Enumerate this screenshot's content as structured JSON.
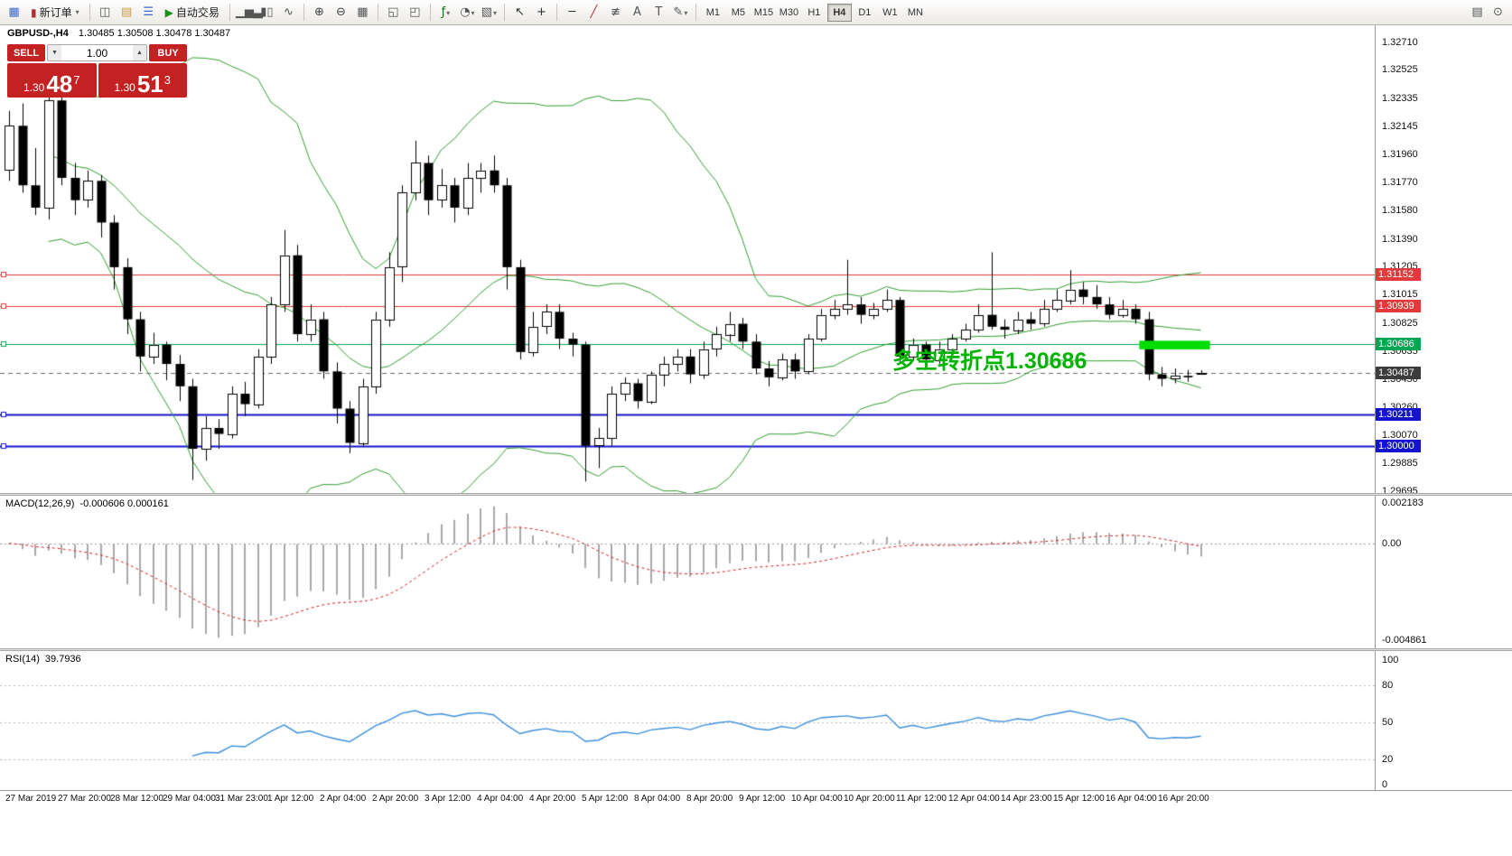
{
  "toolbar": {
    "groups": [
      {
        "items": [
          {
            "name": "new-chart-icon"
          },
          {
            "name": "new-order-button",
            "label": "新订单",
            "icon": "new-order-icon",
            "caret": true
          }
        ]
      },
      {
        "items": [
          {
            "name": "charts-icon"
          },
          {
            "name": "profiles-icon"
          },
          {
            "name": "market-watch-icon"
          },
          {
            "name": "autotrading-button",
            "label": "自动交易",
            "icon": "autotrading-icon"
          }
        ]
      },
      {
        "items": [
          {
            "name": "bar-chart-icon"
          },
          {
            "name": "candlestick-chart-icon"
          },
          {
            "name": "line-chart-icon"
          }
        ]
      },
      {
        "items": [
          {
            "name": "zoom-in-icon"
          },
          {
            "name": "zoom-out-icon"
          },
          {
            "name": "tile-windows-icon"
          }
        ]
      },
      {
        "items": [
          {
            "name": "arrange-vertical-icon"
          },
          {
            "name": "cascade-windows-icon"
          }
        ]
      },
      {
        "items": [
          {
            "name": "indicators-icon",
            "caret": true
          },
          {
            "name": "periods-icon",
            "caret": true
          },
          {
            "name": "templates-icon",
            "caret": true
          }
        ]
      },
      {
        "items": [
          {
            "name": "cursor-icon"
          },
          {
            "name": "crosshair-icon"
          }
        ]
      },
      {
        "items": [
          {
            "name": "horizontal-line-icon"
          },
          {
            "name": "trendline-icon"
          },
          {
            "name": "fibonacci-icon"
          },
          {
            "name": "text-icon"
          },
          {
            "name": "label-icon"
          },
          {
            "name": "shapes-icon",
            "caret": true
          }
        ]
      }
    ],
    "timeframes": {
      "options": [
        "M1",
        "M5",
        "M15",
        "M30",
        "H1",
        "H4",
        "D1",
        "W1",
        "MN"
      ],
      "active": "H4"
    },
    "right_items": [
      {
        "name": "print-icon"
      },
      {
        "name": "search-icon"
      }
    ]
  },
  "chart": {
    "symbol_period": "GBPUSD-,H4",
    "ohlc": "1.30485 1.30508 1.30478 1.30487"
  },
  "one_click": {
    "sell_label": "SELL",
    "buy_label": "BUY",
    "volume": "1.00",
    "bid": {
      "prefix": "1.30",
      "big": "48",
      "sup": "7"
    },
    "ask": {
      "prefix": "1.30",
      "big": "51",
      "sup": "3"
    }
  },
  "annotation": {
    "text": "多空转折点1.30686",
    "color": "#00b400"
  },
  "macd_panel": {
    "title": "MACD(12,26,9)",
    "values": "-0.000606 0.000161",
    "scale": [
      "0.002183",
      "0.00",
      "-0.004861"
    ]
  },
  "rsi_panel": {
    "title": "RSI(14)",
    "value": "39.7936",
    "scale": [
      "100",
      "80",
      "50",
      "20",
      "0"
    ]
  },
  "chart_data": {
    "type": "candlestick",
    "symbol": "GBPUSD-",
    "period": "H4",
    "price_ticks": [
      "1.32710",
      "1.32525",
      "1.32335",
      "1.32145",
      "1.31960",
      "1.31770",
      "1.31580",
      "1.31390",
      "1.31205",
      "1.31015",
      "1.30825",
      "1.30635",
      "1.30450",
      "1.30260",
      "1.30070",
      "1.29885",
      "1.29695"
    ],
    "candles": [
      [
        1.3185,
        1.3225,
        1.3178,
        1.3215
      ],
      [
        1.3215,
        1.323,
        1.317,
        1.3175
      ],
      [
        1.3175,
        1.32,
        1.3155,
        1.316
      ],
      [
        1.316,
        1.3238,
        1.3152,
        1.3232
      ],
      [
        1.3232,
        1.324,
        1.3175,
        1.318
      ],
      [
        1.318,
        1.319,
        1.3155,
        1.3165
      ],
      [
        1.3165,
        1.3185,
        1.316,
        1.3178
      ],
      [
        1.3178,
        1.3182,
        1.314,
        1.315
      ],
      [
        1.315,
        1.3155,
        1.3105,
        1.312
      ],
      [
        1.312,
        1.3126,
        1.3075,
        1.3085
      ],
      [
        1.3085,
        1.309,
        1.305,
        1.306
      ],
      [
        1.306,
        1.3076,
        1.3055,
        1.3068
      ],
      [
        1.3068,
        1.307,
        1.3044,
        1.3055
      ],
      [
        1.3055,
        1.3061,
        1.303,
        1.304
      ],
      [
        1.304,
        1.3045,
        1.2977,
        1.2998
      ],
      [
        1.2998,
        1.302,
        1.299,
        1.3012
      ],
      [
        1.3012,
        1.3018,
        1.2998,
        1.3008
      ],
      [
        1.3008,
        1.304,
        1.3005,
        1.3035
      ],
      [
        1.3035,
        1.3043,
        1.302,
        1.3028
      ],
      [
        1.3028,
        1.3065,
        1.3025,
        1.306
      ],
      [
        1.306,
        1.31,
        1.3055,
        1.3095
      ],
      [
        1.3095,
        1.3145,
        1.309,
        1.3128
      ],
      [
        1.3128,
        1.3135,
        1.307,
        1.3075
      ],
      [
        1.3075,
        1.3095,
        1.307,
        1.3085
      ],
      [
        1.3085,
        1.309,
        1.3045,
        1.305
      ],
      [
        1.305,
        1.3056,
        1.3015,
        1.3025
      ],
      [
        1.3025,
        1.303,
        1.2995,
        1.3002
      ],
      [
        1.3002,
        1.3045,
        1.3,
        1.304
      ],
      [
        1.304,
        1.309,
        1.3035,
        1.3085
      ],
      [
        1.3085,
        1.313,
        1.308,
        1.312
      ],
      [
        1.312,
        1.3175,
        1.311,
        1.317
      ],
      [
        1.317,
        1.3205,
        1.3165,
        1.319
      ],
      [
        1.319,
        1.3195,
        1.3155,
        1.3165
      ],
      [
        1.3165,
        1.3186,
        1.316,
        1.3175
      ],
      [
        1.3175,
        1.318,
        1.315,
        1.316
      ],
      [
        1.316,
        1.319,
        1.3155,
        1.318
      ],
      [
        1.318,
        1.319,
        1.317,
        1.3185
      ],
      [
        1.3185,
        1.3195,
        1.317,
        1.3175
      ],
      [
        1.3175,
        1.318,
        1.3105,
        1.312
      ],
      [
        1.312,
        1.3125,
        1.3058,
        1.3063
      ],
      [
        1.3063,
        1.309,
        1.306,
        1.308
      ],
      [
        1.308,
        1.3095,
        1.3075,
        1.309
      ],
      [
        1.309,
        1.3095,
        1.3065,
        1.3072
      ],
      [
        1.3072,
        1.3076,
        1.306,
        1.3068
      ],
      [
        1.3068,
        1.307,
        1.2976,
        1.3
      ],
      [
        1.3,
        1.3012,
        1.2985,
        1.3005
      ],
      [
        1.3005,
        1.304,
        1.3,
        1.3035
      ],
      [
        1.3035,
        1.3046,
        1.303,
        1.3042
      ],
      [
        1.3042,
        1.3045,
        1.3025,
        1.303
      ],
      [
        1.303,
        1.305,
        1.3028,
        1.3048
      ],
      [
        1.3048,
        1.306,
        1.304,
        1.3055
      ],
      [
        1.3055,
        1.3065,
        1.305,
        1.306
      ],
      [
        1.306,
        1.3065,
        1.3042,
        1.3048
      ],
      [
        1.3048,
        1.307,
        1.3045,
        1.3065
      ],
      [
        1.3065,
        1.308,
        1.306,
        1.3075
      ],
      [
        1.3075,
        1.309,
        1.307,
        1.3082
      ],
      [
        1.3082,
        1.3086,
        1.3065,
        1.307
      ],
      [
        1.307,
        1.3075,
        1.3048,
        1.3052
      ],
      [
        1.3052,
        1.3057,
        1.304,
        1.3046
      ],
      [
        1.3046,
        1.3062,
        1.3044,
        1.3058
      ],
      [
        1.3058,
        1.3062,
        1.3045,
        1.305
      ],
      [
        1.305,
        1.3075,
        1.3048,
        1.3072
      ],
      [
        1.3072,
        1.3092,
        1.307,
        1.3088
      ],
      [
        1.3088,
        1.3098,
        1.3085,
        1.3092
      ],
      [
        1.3092,
        1.3125,
        1.3088,
        1.3095
      ],
      [
        1.3095,
        1.31,
        1.3082,
        1.3088
      ],
      [
        1.3088,
        1.3096,
        1.3085,
        1.3092
      ],
      [
        1.3092,
        1.3105,
        1.309,
        1.3098
      ],
      [
        1.3098,
        1.31,
        1.3055,
        1.306
      ],
      [
        1.306,
        1.3072,
        1.3057,
        1.3068
      ],
      [
        1.3068,
        1.307,
        1.3052,
        1.3058
      ],
      [
        1.3058,
        1.307,
        1.3055,
        1.3065
      ],
      [
        1.3065,
        1.3075,
        1.3062,
        1.3072
      ],
      [
        1.3072,
        1.3082,
        1.307,
        1.3078
      ],
      [
        1.3078,
        1.3095,
        1.3076,
        1.3088
      ],
      [
        1.3088,
        1.313,
        1.3078,
        1.308
      ],
      [
        1.308,
        1.3085,
        1.3072,
        1.3078
      ],
      [
        1.3078,
        1.309,
        1.3075,
        1.3085
      ],
      [
        1.3085,
        1.309,
        1.3078,
        1.3082
      ],
      [
        1.3082,
        1.3098,
        1.308,
        1.3092
      ],
      [
        1.3092,
        1.3105,
        1.309,
        1.3098
      ],
      [
        1.3098,
        1.3118,
        1.3095,
        1.3105
      ],
      [
        1.3105,
        1.311,
        1.3095,
        1.31
      ],
      [
        1.31,
        1.3108,
        1.3092,
        1.3095
      ],
      [
        1.3095,
        1.31,
        1.3085,
        1.3088
      ],
      [
        1.3088,
        1.3098,
        1.3086,
        1.3092
      ],
      [
        1.3092,
        1.3095,
        1.3082,
        1.3085
      ],
      [
        1.3085,
        1.309,
        1.3044,
        1.3048
      ],
      [
        1.3048,
        1.3053,
        1.304,
        1.3045
      ],
      [
        1.3045,
        1.3052,
        1.3042,
        1.3047
      ],
      [
        1.3047,
        1.3051,
        1.3043,
        1.3046
      ],
      [
        1.30485,
        1.30508,
        1.30478,
        1.30487
      ]
    ],
    "bollinger": {
      "period": 20,
      "deviation": 2,
      "color": "#2f9e2f"
    },
    "candle_up_color": "#ffffff",
    "candle_down_color": "#000000",
    "hlines": [
      {
        "price": 1.31152,
        "label": "1.31152",
        "color": "#e13a3a",
        "width": 1
      },
      {
        "price": 1.30939,
        "label": "1.30939",
        "color": "#e13a3a",
        "width": 1
      },
      {
        "price": 1.30686,
        "label": "1.30686",
        "color": "#00a651",
        "width": 1
      },
      {
        "price": 1.30211,
        "label": "1.30211",
        "color": "#1414cc",
        "width": 2
      },
      {
        "price": 1.3,
        "label": "1.30000",
        "color": "#1414cc",
        "width": 2
      }
    ],
    "current_price": {
      "price": 1.30487,
      "label": "1.30487",
      "color": "#3c3c3c"
    },
    "highlight": {
      "from": 86.3,
      "to": 91.7,
      "top": 1.30706,
      "bottom": 1.30648,
      "color": "#00dc00"
    },
    "macd": {
      "fast": 12,
      "slow": 26,
      "signal": 9,
      "histogram_color": "#a8a8a8",
      "signal_color": "#d42020"
    },
    "rsi": {
      "period": 14,
      "levels": [
        80,
        50,
        20
      ],
      "color": "#3a8ede"
    },
    "time_labels": [
      "27 Mar 2019",
      "27 Mar 20:00",
      "28 Mar 12:00",
      "29 Mar 04:00",
      "31 Mar 23:00",
      "1 Apr 12:00",
      "2 Apr 04:00",
      "2 Apr 20:00",
      "3 Apr 12:00",
      "4 Apr 04:00",
      "4 Apr 20:00",
      "5 Apr 12:00",
      "8 Apr 04:00",
      "8 Apr 20:00",
      "9 Apr 12:00",
      "10 Apr 04:00",
      "10 Apr 20:00",
      "11 Apr 12:00",
      "12 Apr 04:00",
      "14 Apr 23:00",
      "15 Apr 12:00",
      "16 Apr 04:00",
      "16 Apr 20:00"
    ]
  }
}
